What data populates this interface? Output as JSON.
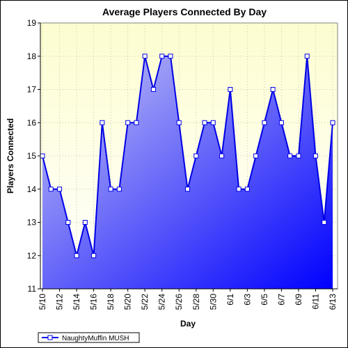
{
  "chart_data": {
    "type": "area",
    "title": "Average Players Connected By Day",
    "xlabel": "Day",
    "ylabel": "Players Connected",
    "ylim": [
      11,
      19
    ],
    "yticks": [
      11,
      12,
      13,
      14,
      15,
      16,
      17,
      18,
      19
    ],
    "grid": true,
    "legend": "bottom-left",
    "x": [
      "5/10",
      "5/11",
      "5/12",
      "5/13",
      "5/14",
      "5/15",
      "5/16",
      "5/17",
      "5/18",
      "5/19",
      "5/20",
      "5/21",
      "5/22",
      "5/23",
      "5/24",
      "5/25",
      "5/26",
      "5/27",
      "5/28",
      "5/29",
      "5/30",
      "5/31",
      "6/1",
      "6/2",
      "6/3",
      "6/4",
      "6/5",
      "6/6",
      "6/7",
      "6/8",
      "6/9",
      "6/10",
      "6/11",
      "6/12",
      "6/13"
    ],
    "xtick_labels": [
      "5/10",
      "5/12",
      "5/14",
      "5/16",
      "5/18",
      "5/20",
      "5/22",
      "5/24",
      "5/26",
      "5/28",
      "5/30",
      "6/1",
      "6/3",
      "6/5",
      "6/7",
      "6/9",
      "6/11",
      "6/13"
    ],
    "series": [
      {
        "name": "NaughtyMuffin MUSH",
        "values": [
          15,
          14,
          14,
          13,
          12,
          13,
          12,
          16,
          14,
          14,
          16,
          16,
          18,
          17,
          18,
          18,
          16,
          14,
          15,
          16,
          16,
          15,
          17,
          14,
          14,
          15,
          16,
          17,
          16,
          15,
          15,
          18,
          15,
          13,
          16
        ]
      }
    ]
  },
  "colors": {
    "plot_bg_top": "#fdfdd0",
    "plot_bg_bottom": "#ffffff",
    "line": "#0000e6",
    "fill_light": "#c8c8f4",
    "fill_dark": "#0000ff",
    "grid": "#c8c8a0"
  }
}
